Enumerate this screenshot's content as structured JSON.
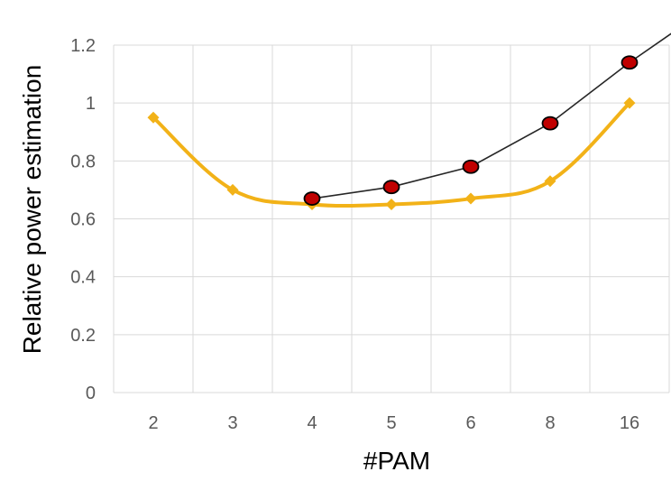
{
  "chart_data": {
    "type": "line",
    "title": "",
    "xlabel": "#PAM",
    "ylabel": "Relative power estimation",
    "categories": [
      "2",
      "3",
      "4",
      "5",
      "6",
      "8",
      "16"
    ],
    "ylim": [
      0,
      1.2
    ],
    "yticks": [
      "0",
      "0.2",
      "0.4",
      "0.6",
      "0.8",
      "1",
      "1.2"
    ],
    "grid": true,
    "legend": "none",
    "series": [
      {
        "color": "#f2b218",
        "marker": "diamond",
        "smooth": true,
        "values": [
          0.95,
          0.7,
          0.65,
          0.65,
          0.67,
          0.73,
          1.0
        ]
      },
      {
        "color": "#262626",
        "marker_color": "#c00000",
        "marker": "circle",
        "smooth": false,
        "values": [
          null,
          null,
          0.67,
          0.71,
          0.78,
          0.93,
          1.14
        ],
        "continues_past_axis": {
          "value": 1.33
        }
      }
    ]
  }
}
